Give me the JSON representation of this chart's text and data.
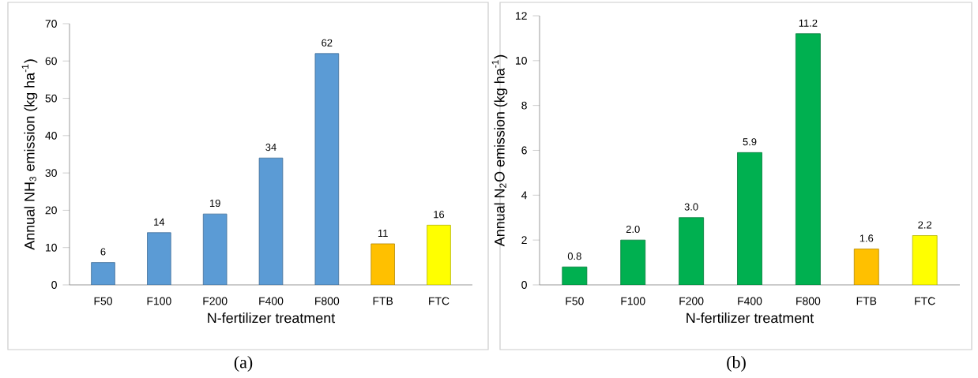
{
  "chart_data": [
    {
      "type": "bar",
      "xlabel": "N-fertilizer treatment",
      "ylabel": "Annual NH$_{3}$ emission (kg ha$^{-1}$)",
      "categories": [
        "F50",
        "F100",
        "F200",
        "F400",
        "F800",
        "FTB",
        "FTC"
      ],
      "values": [
        6,
        14,
        19,
        34,
        62,
        11,
        16
      ],
      "value_labels": [
        "6",
        "14",
        "19",
        "34",
        "62",
        "11",
        "16"
      ],
      "colors": [
        "#5b9bd5",
        "#5b9bd5",
        "#5b9bd5",
        "#5b9bd5",
        "#5b9bd5",
        "#ffc000",
        "#ffff00"
      ],
      "ylim": [
        0,
        70
      ],
      "yticks": [
        0,
        10,
        20,
        30,
        40,
        50,
        60,
        70
      ],
      "annotations": [
        "(a)"
      ]
    },
    {
      "type": "bar",
      "xlabel": "N-fertilizer treatment",
      "ylabel": "Annual N$_{2}$O emission (kg ha$^{-1}$)",
      "categories": [
        "F50",
        "F100",
        "F200",
        "F400",
        "F800",
        "FTB",
        "FTC"
      ],
      "values": [
        0.8,
        2.0,
        3.0,
        5.9,
        11.2,
        1.6,
        2.2
      ],
      "value_labels": [
        "0.8",
        "2.0",
        "3.0",
        "5.9",
        "11.2",
        "1.6",
        "2.2"
      ],
      "colors": [
        "#00b050",
        "#00b050",
        "#00b050",
        "#00b050",
        "#00b050",
        "#ffc000",
        "#ffff00"
      ],
      "ylim": [
        0,
        12
      ],
      "yticks": [
        0,
        2,
        4,
        6,
        8,
        10,
        12
      ],
      "annotations": [
        "(b)"
      ]
    }
  ]
}
